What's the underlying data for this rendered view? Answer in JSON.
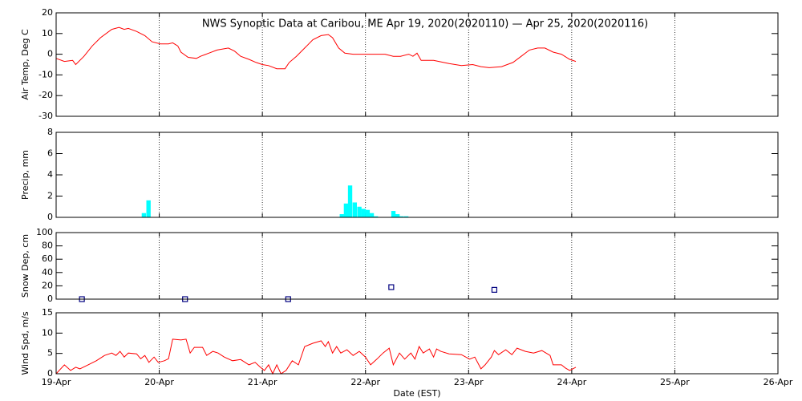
{
  "chart_data": [
    {
      "type": "line",
      "title": "NWS Synoptic Data at Caribou, ME   Apr 19, 2020(2020110) — Apr 25, 2020(2020116)",
      "y_label": "Air Temp, Deg C",
      "color": "#ff0000",
      "xlim": [
        0,
        7
      ],
      "ylim": [
        -30,
        20
      ],
      "yticks": [
        -30,
        -20,
        -10,
        0,
        10,
        20
      ],
      "x": [
        0,
        0.08,
        0.16,
        0.19,
        0.27,
        0.35,
        0.43,
        0.54,
        0.61,
        0.66,
        0.7,
        0.78,
        0.86,
        0.93,
        1.01,
        1.09,
        1.13,
        1.18,
        1.21,
        1.28,
        1.36,
        1.4,
        1.48,
        1.56,
        1.67,
        1.73,
        1.79,
        1.87,
        1.94,
        2.0,
        2.06,
        2.14,
        2.22,
        2.26,
        2.33,
        2.41,
        2.49,
        2.57,
        2.64,
        2.68,
        2.74,
        2.8,
        2.88,
        3.0,
        3.19,
        3.27,
        3.34,
        3.42,
        3.46,
        3.5,
        3.54,
        3.66,
        3.81,
        3.93,
        4.04,
        4.12,
        4.2,
        4.32,
        4.43,
        4.51,
        4.59,
        4.67,
        4.74,
        4.82,
        4.9,
        4.98,
        5.04
      ],
      "values": [
        -2,
        -3.5,
        -3,
        -5,
        -1,
        4,
        8,
        12,
        13,
        12,
        12.5,
        11,
        9,
        6,
        5,
        5,
        5.5,
        4,
        1,
        -1.5,
        -2,
        -1,
        0.5,
        2,
        3,
        1.5,
        -1,
        -2.5,
        -4,
        -5,
        -5.5,
        -7,
        -7,
        -4,
        -1,
        3,
        7,
        9,
        9.5,
        8,
        3,
        0.5,
        0,
        0,
        0,
        -1,
        -1,
        0,
        -1,
        0.5,
        -3,
        -3,
        -4.5,
        -5.5,
        -5,
        -6,
        -6.5,
        -6,
        -4,
        -1,
        2,
        3,
        3,
        1,
        0,
        -2.5,
        -3.5
      ]
    },
    {
      "type": "bar",
      "y_label": "Precip, mm",
      "color": "#00ffff",
      "xlim": [
        0,
        7
      ],
      "ylim": [
        0,
        8
      ],
      "yticks": [
        0,
        2,
        4,
        6,
        8
      ],
      "x": [
        0.83,
        0.875,
        2.75,
        2.79,
        2.83,
        2.875,
        2.92,
        2.96,
        3.0,
        3.04,
        3.08,
        3.25,
        3.29,
        3.33,
        3.375
      ],
      "values": [
        0.4,
        1.6,
        0.3,
        1.3,
        3.0,
        1.4,
        1.0,
        0.8,
        0.7,
        0.4,
        0.1,
        0.6,
        0.3,
        0.1,
        0.1
      ]
    },
    {
      "type": "scatter",
      "y_label": "Snow Dep, cm",
      "color": "#000080",
      "xlim": [
        0,
        7
      ],
      "ylim": [
        0,
        100
      ],
      "yticks": [
        0,
        20,
        40,
        60,
        80,
        100
      ],
      "x": [
        0.25,
        1.25,
        2.25,
        3.25,
        4.25
      ],
      "values": [
        0,
        0,
        0,
        18,
        14
      ]
    },
    {
      "type": "line",
      "y_label": "Wind Spd, m/s",
      "x_label": "Date (EST)",
      "color": "#ff0000",
      "xlim": [
        0,
        7
      ],
      "ylim": [
        0,
        15
      ],
      "yticks": [
        0,
        5,
        10,
        15
      ],
      "xticks": [
        {
          "value": 0,
          "label": "19-Apr"
        },
        {
          "value": 1,
          "label": "20-Apr"
        },
        {
          "value": 2,
          "label": "21-Apr"
        },
        {
          "value": 3,
          "label": "22-Apr"
        },
        {
          "value": 4,
          "label": "23-Apr"
        },
        {
          "value": 5,
          "label": "24-Apr"
        },
        {
          "value": 6,
          "label": "25-Apr"
        },
        {
          "value": 7,
          "label": "26-Apr"
        }
      ],
      "x": [
        0,
        0.08,
        0.14,
        0.19,
        0.23,
        0.31,
        0.39,
        0.47,
        0.54,
        0.58,
        0.62,
        0.66,
        0.7,
        0.78,
        0.82,
        0.86,
        0.9,
        0.95,
        0.99,
        1.05,
        1.09,
        1.13,
        1.21,
        1.26,
        1.3,
        1.34,
        1.42,
        1.46,
        1.52,
        1.57,
        1.63,
        1.71,
        1.79,
        1.87,
        1.93,
        1.98,
        2.02,
        2.06,
        2.1,
        2.14,
        2.18,
        2.23,
        2.29,
        2.35,
        2.41,
        2.49,
        2.57,
        2.61,
        2.64,
        2.68,
        2.72,
        2.76,
        2.82,
        2.88,
        2.94,
        3.0,
        3.05,
        3.11,
        3.17,
        3.23,
        3.27,
        3.33,
        3.38,
        3.44,
        3.48,
        3.52,
        3.56,
        3.62,
        3.66,
        3.69,
        3.73,
        3.81,
        3.93,
        4.01,
        4.06,
        4.12,
        4.16,
        4.22,
        4.25,
        4.29,
        4.36,
        4.42,
        4.47,
        4.55,
        4.63,
        4.71,
        4.79,
        4.82,
        4.9,
        4.94,
        4.98,
        5.04
      ],
      "values": [
        0,
        2.2,
        0.8,
        1.6,
        1.2,
        2.2,
        3.2,
        4.5,
        5.1,
        4.5,
        5.5,
        4.1,
        5.1,
        4.9,
        3.7,
        4.5,
        2.8,
        4.1,
        2.8,
        3.2,
        3.7,
        8.5,
        8.3,
        8.5,
        5.1,
        6.5,
        6.5,
        4.5,
        5.5,
        5.1,
        4.1,
        3.2,
        3.5,
        2.2,
        2.8,
        1.6,
        0.8,
        2.2,
        0,
        2.2,
        0,
        0.8,
        3.2,
        2.2,
        6.7,
        7.5,
        8.1,
        6.7,
        7.9,
        5.1,
        6.7,
        5.1,
        5.9,
        4.5,
        5.5,
        4.1,
        2.2,
        3.6,
        5.1,
        6.3,
        2.2,
        5.1,
        3.6,
        5.1,
        3.6,
        6.7,
        5.1,
        6.1,
        4.1,
        6.1,
        5.5,
        4.9,
        4.7,
        3.6,
        4.1,
        1.2,
        2.2,
        4.1,
        5.7,
        4.7,
        5.9,
        4.7,
        6.3,
        5.5,
        5.1,
        5.7,
        4.5,
        2.2,
        2.2,
        1.4,
        0.8,
        1.6
      ]
    }
  ]
}
